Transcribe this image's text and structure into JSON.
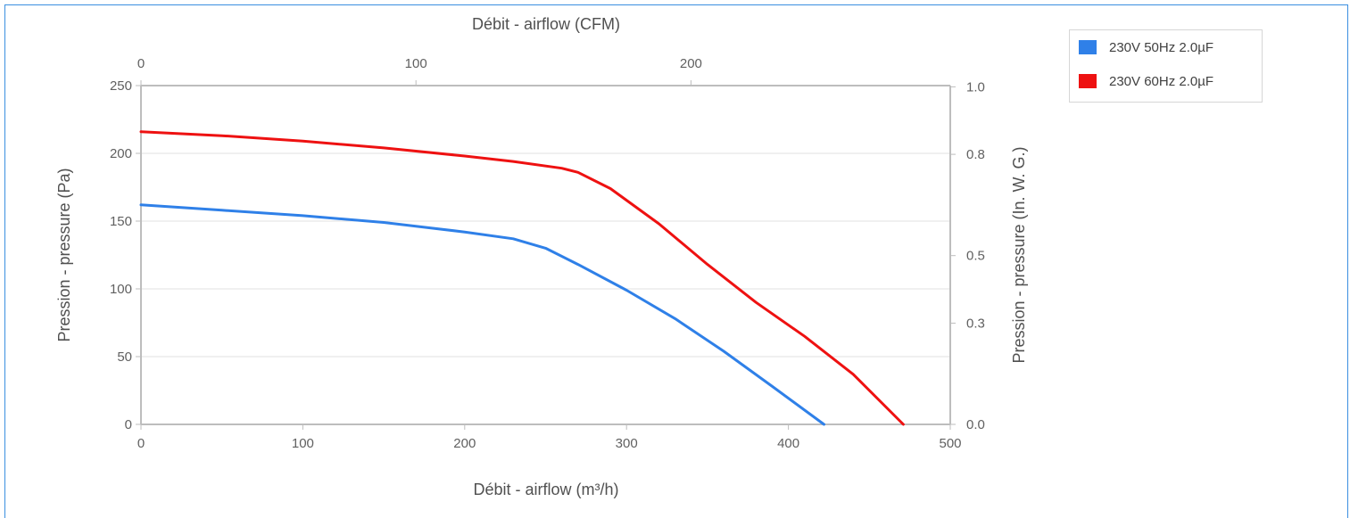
{
  "chart_data": {
    "type": "line",
    "x_bottom_label": "Débit - airflow (m³/h)",
    "x_top_label": "Débit - airflow (CFM)",
    "y_left_label": "Pression - pressure (Pa)",
    "y_right_label": "Pression - pressure (In. W. G.)",
    "xlim": [
      0,
      500
    ],
    "ylim": [
      0,
      250
    ],
    "x_ticks": [
      0,
      100,
      200,
      300,
      400,
      500
    ],
    "y_ticks": [
      0,
      50,
      100,
      150,
      200,
      250
    ],
    "top_ticks_cfm": [
      0,
      100,
      200
    ],
    "right_ticks": [
      "0.0",
      "0.3",
      "0.5",
      "0.8",
      "1.0"
    ],
    "grid": true,
    "legend_position": "top-right",
    "series": [
      {
        "name": "230V 50Hz 2.0µF",
        "color": "#2f80e8",
        "x": [
          0,
          50,
          100,
          150,
          200,
          230,
          250,
          270,
          300,
          330,
          360,
          390,
          422
        ],
        "y": [
          162,
          158,
          154,
          149,
          142,
          137,
          130,
          118,
          99,
          78,
          54,
          28,
          0
        ]
      },
      {
        "name": "230V 60Hz 2.0µF",
        "color": "#ee1111",
        "x": [
          0,
          50,
          100,
          150,
          200,
          230,
          260,
          270,
          290,
          320,
          350,
          380,
          410,
          440,
          471
        ],
        "y": [
          216,
          213,
          209,
          204,
          198,
          194,
          189,
          186,
          174,
          148,
          118,
          90,
          65,
          37,
          0
        ]
      }
    ]
  }
}
